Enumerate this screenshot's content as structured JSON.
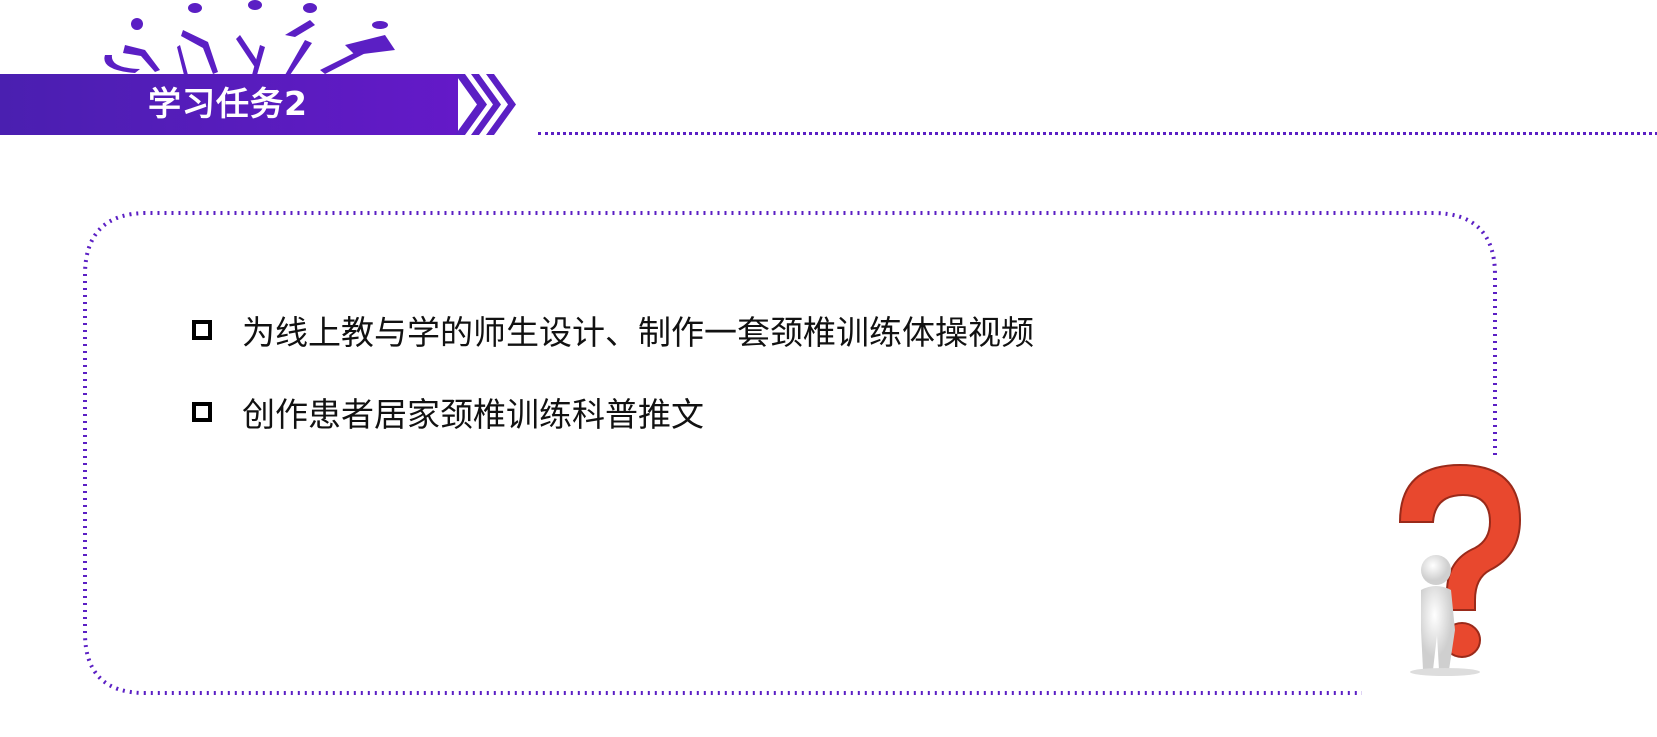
{
  "header": {
    "title": "学习任务2"
  },
  "tasks": [
    {
      "text": "为线上教与学的师生设计、制作一套颈椎训练体操视频"
    },
    {
      "text": "创作患者居家颈椎训练科普推文"
    }
  ],
  "colors": {
    "accent": "#5b1fc4",
    "question_mark": "#e8482e"
  },
  "icons": {
    "logo": "para-sports-figures-icon",
    "decor": "thinking-person-question-mark-icon",
    "bullet": "square-bullet-icon"
  }
}
